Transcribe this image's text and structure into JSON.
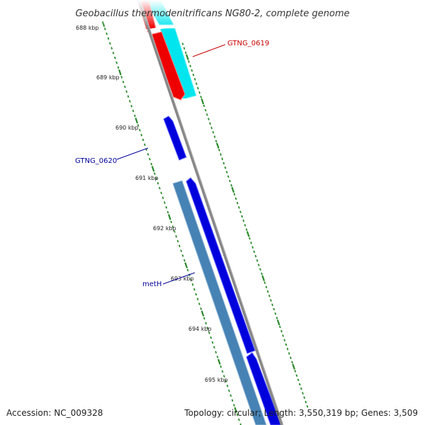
{
  "header": {
    "title": "Geobacillus thermodenitrificans NG80-2, complete genome"
  },
  "axis": {
    "ticks": [
      "688 kbp",
      "689 kbp",
      "690 kbp",
      "691 kbp",
      "692 kbp",
      "693 kbp",
      "694 kbp",
      "695 kbp"
    ]
  },
  "genes": [
    {
      "name": "GTNG_0619",
      "label_color": "#cc0000"
    },
    {
      "name": "GTNG_0620",
      "label_color": "#000099"
    },
    {
      "name": "metH",
      "label_color": "#000099"
    }
  ],
  "footer": {
    "accession": "Accession: NC_009328",
    "summary": "Topology: circular; Length: 3,550,319 bp; Genes: 3,509"
  },
  "colors": {
    "backbone": "#888888",
    "tick_green": "#2a8a2a",
    "forward_red": "#ee0000",
    "forward_cyan": "#00e5ee",
    "reverse_blue": "#0000dd",
    "steelblue": "#4682b4"
  }
}
